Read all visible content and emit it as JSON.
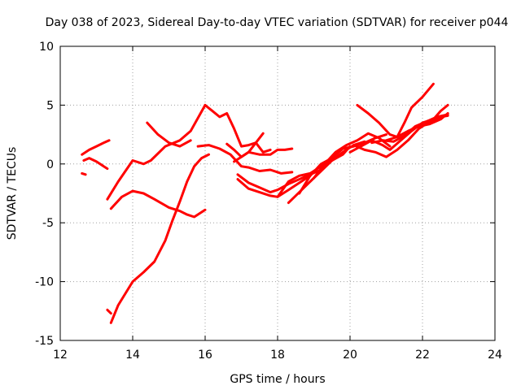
{
  "chart_data": {
    "type": "scatter",
    "title": "Day 038 of 2023, Sidereal Day-to-day VTEC variation (SDTVAR) for receiver p044",
    "xlabel": "GPS time / hours",
    "ylabel": "SDTVAR / TECUs",
    "xlim": [
      12,
      24
    ],
    "ylim": [
      -15,
      10
    ],
    "xticks": [
      "12",
      "14",
      "16",
      "18",
      "20",
      "22",
      "24"
    ],
    "yticks": [
      "10",
      "5",
      "0",
      "-5",
      "-10",
      "-15"
    ],
    "grid": true,
    "series_color": "#ff0000",
    "series": [
      {
        "x": [
          12.6,
          12.8,
          13.0,
          13.2,
          13.35
        ],
        "y": [
          0.8,
          1.2,
          1.5,
          1.8,
          2.0
        ]
      },
      {
        "x": [
          12.6,
          12.7
        ],
        "y": [
          -0.8,
          -0.9
        ]
      },
      {
        "x": [
          12.65,
          12.8,
          13.0,
          13.2,
          13.3
        ],
        "y": [
          0.3,
          0.5,
          0.2,
          -0.2,
          -0.4
        ]
      },
      {
        "x": [
          13.3,
          13.6,
          14.0,
          14.3,
          14.5,
          14.9,
          15.3,
          15.6,
          16.0
        ],
        "y": [
          -3.0,
          -1.5,
          0.3,
          0.0,
          0.3,
          1.5,
          2.0,
          2.8,
          5.0
        ]
      },
      {
        "x": [
          13.4,
          13.7,
          14.0,
          14.3,
          14.6,
          15.0,
          15.3,
          15.5,
          15.7,
          16.0
        ],
        "y": [
          -3.8,
          -2.8,
          -2.3,
          -2.5,
          -3.0,
          -3.7,
          -4.0,
          -4.3,
          -4.5,
          -3.9
        ]
      },
      {
        "x": [
          13.3,
          13.4
        ],
        "y": [
          -12.4,
          -12.7
        ]
      },
      {
        "x": [
          13.4,
          13.6,
          13.8,
          14.0,
          14.3,
          14.6,
          14.9,
          15.1,
          15.3,
          15.5,
          15.7,
          15.9,
          16.1
        ],
        "y": [
          -13.5,
          -12.0,
          -11.0,
          -10.0,
          -9.2,
          -8.3,
          -6.5,
          -4.8,
          -3.2,
          -1.5,
          -0.2,
          0.5,
          0.8
        ]
      },
      {
        "x": [
          14.4,
          14.7,
          15.0,
          15.3,
          15.6
        ],
        "y": [
          3.5,
          2.5,
          1.8,
          1.5,
          2.0
        ]
      },
      {
        "x": [
          16.0,
          16.2,
          16.4,
          16.6,
          16.8,
          17.0,
          17.2,
          17.4,
          17.6,
          17.8
        ],
        "y": [
          5.0,
          4.5,
          4.0,
          4.3,
          3.0,
          1.5,
          1.6,
          1.8,
          1.0,
          1.2
        ]
      },
      {
        "x": [
          15.8,
          16.1,
          16.4,
          16.7,
          17.0,
          17.2,
          17.5,
          17.8,
          18.1,
          18.4
        ],
        "y": [
          1.5,
          1.6,
          1.3,
          0.8,
          -0.2,
          -0.3,
          -0.6,
          -0.5,
          -0.8,
          -0.7
        ]
      },
      {
        "x": [
          16.6,
          16.8,
          17.0,
          17.2,
          17.4,
          17.6
        ],
        "y": [
          1.7,
          1.2,
          0.6,
          1.0,
          1.8,
          2.6
        ]
      },
      {
        "x": [
          16.8,
          17.0,
          17.2,
          17.5,
          17.8,
          18.0,
          18.2,
          18.4
        ],
        "y": [
          0.2,
          0.6,
          1.0,
          0.8,
          0.8,
          1.2,
          1.2,
          1.3
        ]
      },
      {
        "x": [
          16.9,
          17.2,
          17.5,
          17.8,
          18.0,
          18.3,
          18.6,
          18.9
        ],
        "y": [
          -1.3,
          -2.1,
          -2.4,
          -2.7,
          -2.8,
          -2.2,
          -1.6,
          -1.0
        ]
      },
      {
        "x": [
          16.9,
          17.2,
          17.5,
          17.8,
          18.0,
          18.3,
          18.6,
          18.9,
          19.2
        ],
        "y": [
          -0.9,
          -1.6,
          -2.0,
          -2.4,
          -2.2,
          -1.7,
          -1.3,
          -0.9,
          -0.5
        ]
      },
      {
        "x": [
          18.0,
          18.3,
          18.6,
          18.9,
          19.2,
          19.5,
          19.8,
          20.0
        ],
        "y": [
          -2.8,
          -1.5,
          -1.0,
          -0.8,
          -0.2,
          0.3,
          0.8,
          1.5
        ]
      },
      {
        "x": [
          18.3,
          18.6,
          18.9,
          19.2,
          19.5,
          19.8,
          20.1,
          20.4
        ],
        "y": [
          -3.3,
          -2.4,
          -1.5,
          -0.6,
          0.3,
          1.0,
          1.6,
          1.9
        ]
      },
      {
        "x": [
          18.6,
          18.9,
          19.2,
          19.5,
          19.8,
          20.1,
          20.4,
          20.7,
          21.0
        ],
        "y": [
          -2.5,
          -1.0,
          0.0,
          0.5,
          1.3,
          1.5,
          1.8,
          2.2,
          2.5
        ]
      },
      {
        "x": [
          19.0,
          19.3,
          19.6,
          19.9,
          20.2,
          20.5,
          20.8,
          21.1
        ],
        "y": [
          -1.2,
          0.0,
          1.0,
          1.6,
          2.0,
          2.6,
          2.2,
          1.5
        ]
      },
      {
        "x": [
          20.2,
          20.5,
          20.8,
          21.1,
          21.3,
          21.5,
          21.7,
          22.0,
          22.3
        ],
        "y": [
          5.0,
          4.3,
          3.5,
          2.5,
          2.3,
          3.5,
          4.8,
          5.7,
          6.8
        ]
      },
      {
        "x": [
          20.0,
          20.3,
          20.6,
          20.9,
          21.1,
          21.4,
          21.7,
          22.0,
          22.3,
          22.5,
          22.7
        ],
        "y": [
          1.0,
          1.5,
          2.0,
          1.6,
          1.2,
          2.0,
          2.8,
          3.5,
          3.8,
          4.5,
          5.0
        ]
      },
      {
        "x": [
          20.1,
          20.4,
          20.7,
          21.0,
          21.3,
          21.6,
          21.9,
          22.2,
          22.5,
          22.7
        ],
        "y": [
          1.6,
          1.2,
          1.0,
          0.6,
          1.2,
          2.0,
          3.0,
          3.6,
          4.0,
          4.1
        ]
      },
      {
        "x": [
          20.6,
          20.9,
          21.2,
          21.5,
          21.8,
          22.1,
          22.4,
          22.7
        ],
        "y": [
          1.8,
          2.0,
          1.9,
          2.4,
          3.2,
          3.6,
          4.0,
          4.2
        ]
      },
      {
        "x": [
          21.0,
          21.3,
          21.6,
          21.9,
          22.2,
          22.5,
          22.7
        ],
        "y": [
          2.0,
          2.3,
          2.8,
          3.2,
          3.4,
          3.8,
          4.3
        ]
      }
    ]
  }
}
